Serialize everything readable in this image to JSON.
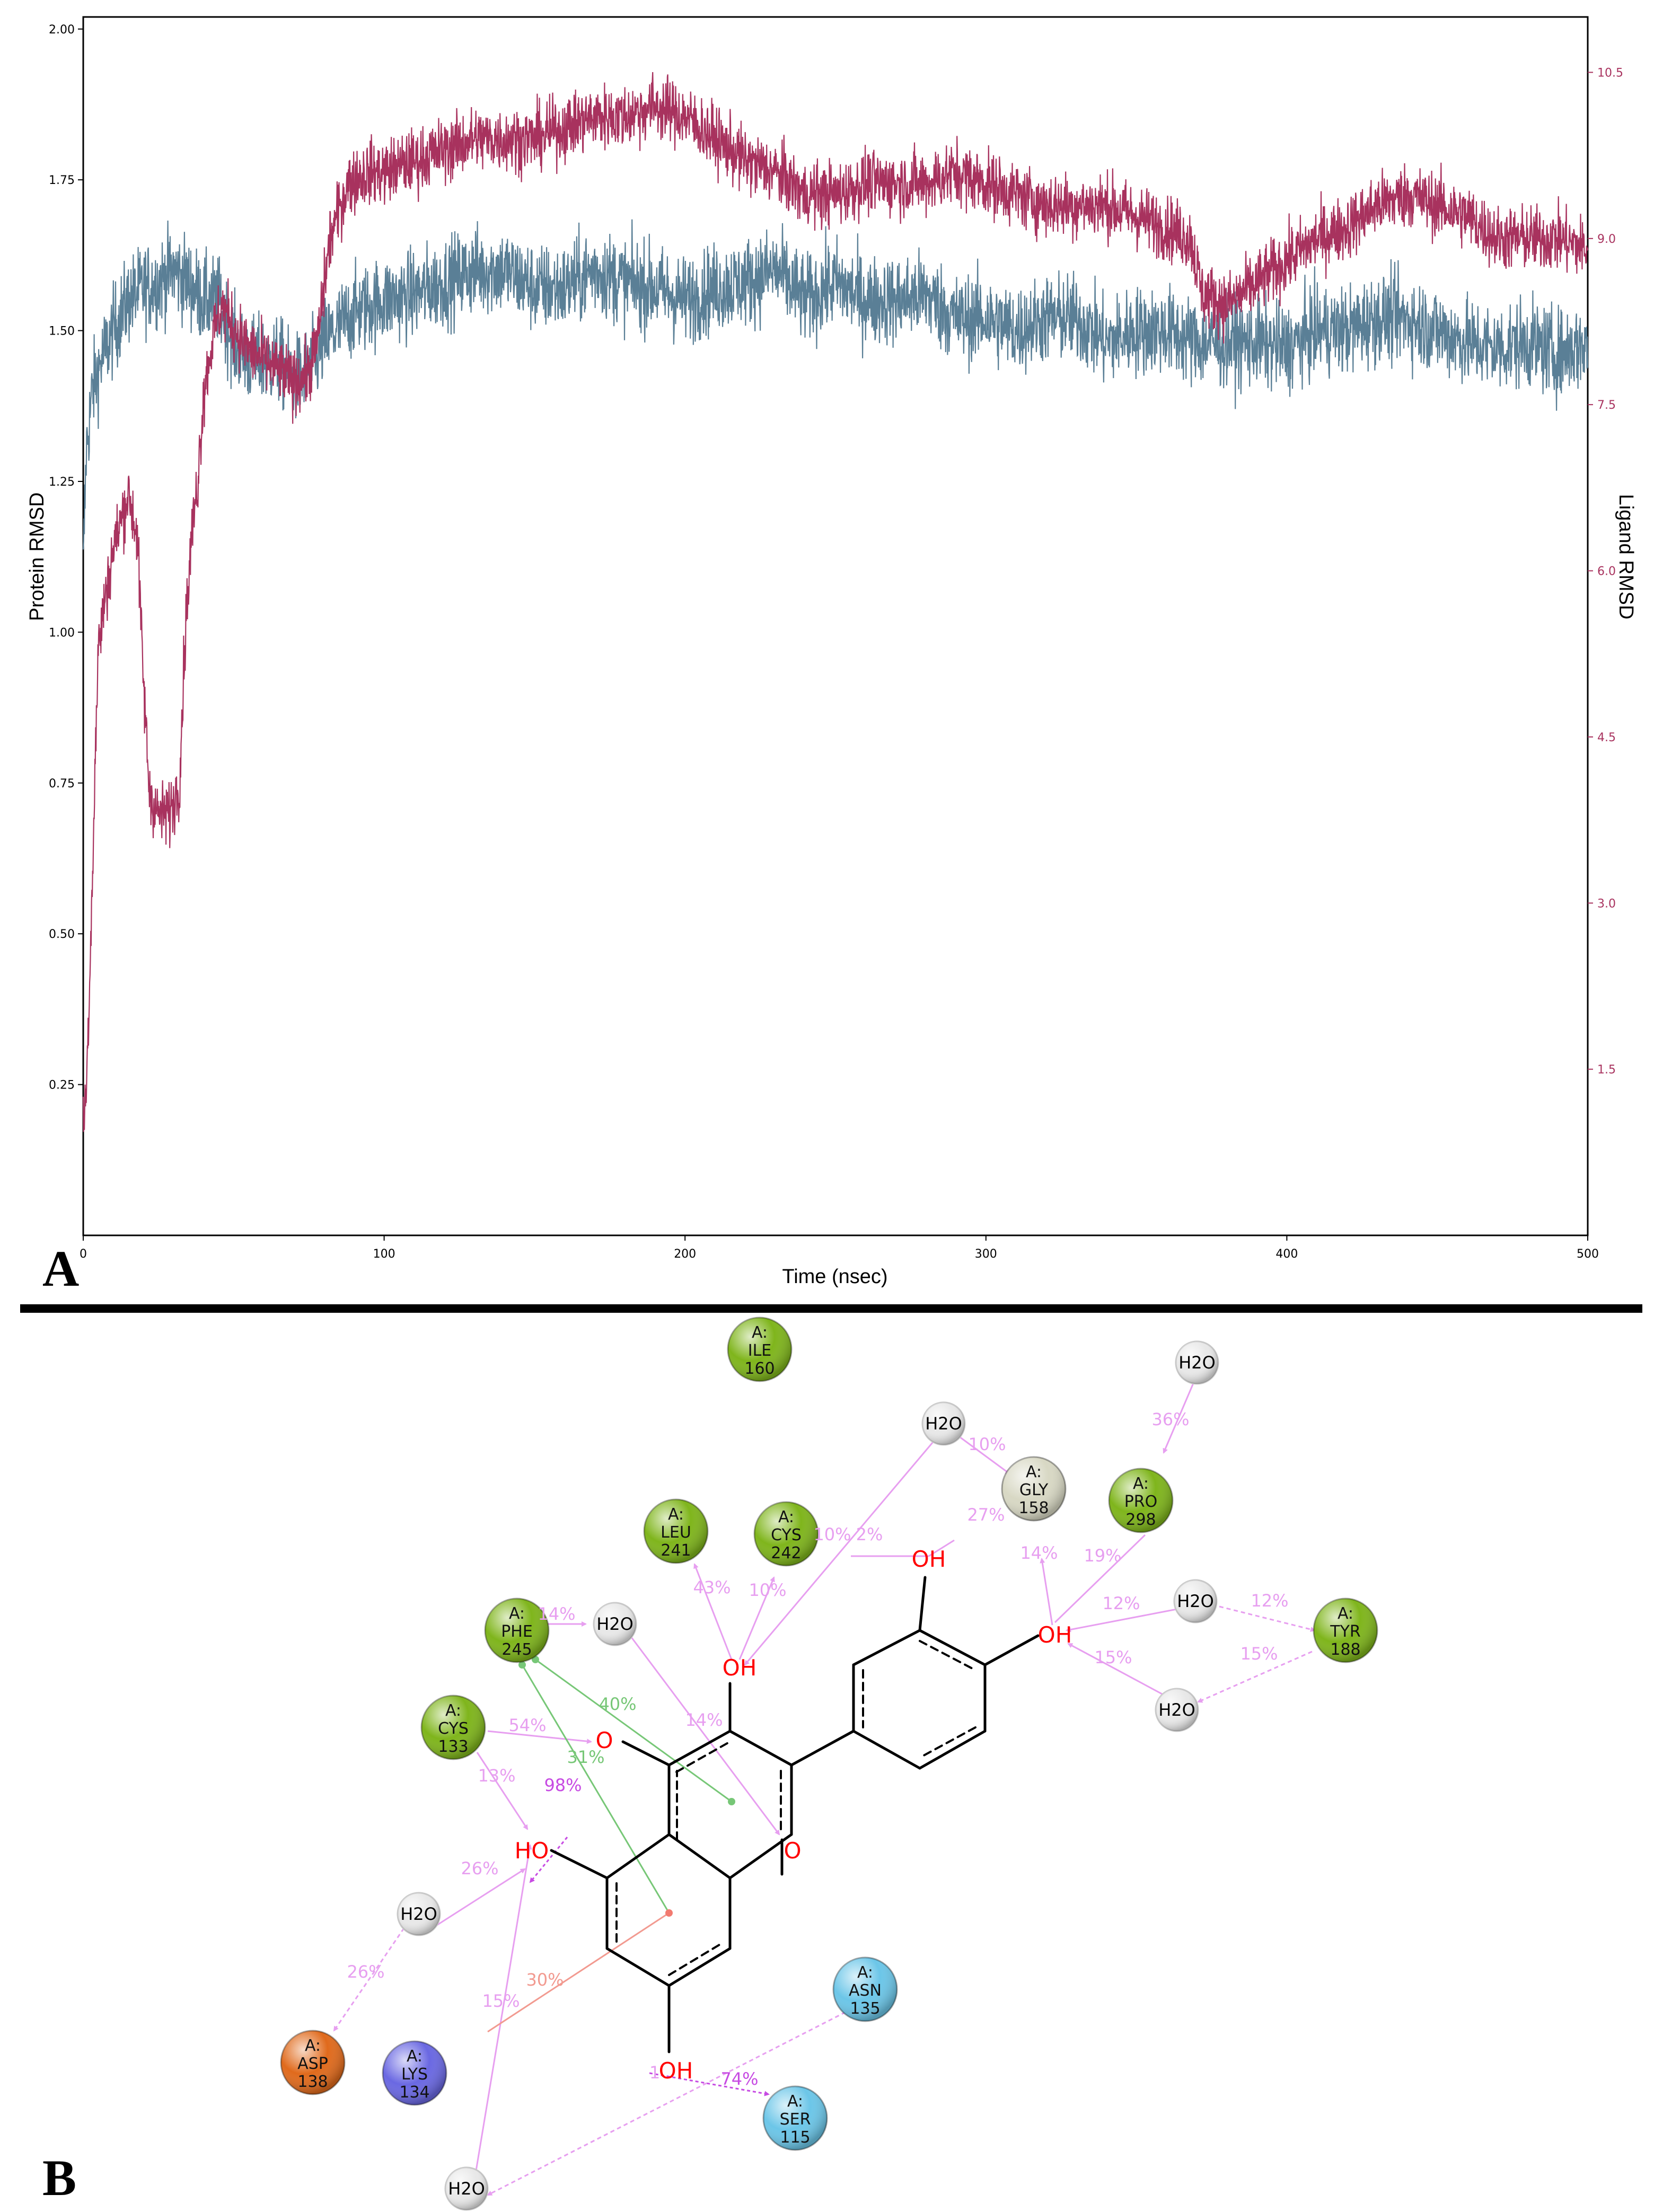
{
  "panels": {
    "a_label": "A",
    "b_label": "B"
  },
  "chart_data": {
    "type": "line",
    "xlabel": "Time (nsec)",
    "ylabel_left": "Protein RMSD",
    "ylabel_right": "Ligand RMSD",
    "xlim": [
      0,
      500
    ],
    "ylim_left": [
      0,
      2.02
    ],
    "ylim_right": [
      0,
      11.0
    ],
    "x_ticks": [
      0,
      100,
      200,
      300,
      400,
      500
    ],
    "y_ticks_left": [
      "0.25",
      "0.50",
      "0.75",
      "1.00",
      "1.25",
      "1.50",
      "1.75",
      "2.00"
    ],
    "y_ticks_right": [
      "1.5",
      "3.0",
      "4.5",
      "6.0",
      "7.5",
      "9.0",
      "10.5"
    ],
    "grid": false,
    "series": [
      {
        "axis": "left",
        "color": "#5a7f96",
        "noise": 0.07,
        "points": [
          [
            0,
            1.1
          ],
          [
            1,
            1.3
          ],
          [
            3,
            1.4
          ],
          [
            6,
            1.45
          ],
          [
            10,
            1.5
          ],
          [
            15,
            1.55
          ],
          [
            20,
            1.57
          ],
          [
            25,
            1.58
          ],
          [
            30,
            1.6
          ],
          [
            35,
            1.58
          ],
          [
            40,
            1.55
          ],
          [
            45,
            1.55
          ],
          [
            50,
            1.48
          ],
          [
            55,
            1.45
          ],
          [
            60,
            1.45
          ],
          [
            65,
            1.45
          ],
          [
            70,
            1.42
          ],
          [
            75,
            1.43
          ],
          [
            80,
            1.48
          ],
          [
            90,
            1.53
          ],
          [
            100,
            1.55
          ],
          [
            110,
            1.56
          ],
          [
            120,
            1.58
          ],
          [
            130,
            1.6
          ],
          [
            140,
            1.6
          ],
          [
            150,
            1.57
          ],
          [
            160,
            1.57
          ],
          [
            170,
            1.6
          ],
          [
            180,
            1.58
          ],
          [
            190,
            1.57
          ],
          [
            200,
            1.55
          ],
          [
            210,
            1.57
          ],
          [
            220,
            1.58
          ],
          [
            230,
            1.6
          ],
          [
            240,
            1.55
          ],
          [
            250,
            1.58
          ],
          [
            260,
            1.55
          ],
          [
            270,
            1.55
          ],
          [
            280,
            1.56
          ],
          [
            290,
            1.52
          ],
          [
            300,
            1.52
          ],
          [
            310,
            1.5
          ],
          [
            320,
            1.52
          ],
          [
            330,
            1.52
          ],
          [
            340,
            1.48
          ],
          [
            350,
            1.5
          ],
          [
            360,
            1.5
          ],
          [
            370,
            1.48
          ],
          [
            380,
            1.48
          ],
          [
            390,
            1.48
          ],
          [
            400,
            1.47
          ],
          [
            410,
            1.5
          ],
          [
            420,
            1.5
          ],
          [
            430,
            1.52
          ],
          [
            440,
            1.52
          ],
          [
            450,
            1.5
          ],
          [
            460,
            1.48
          ],
          [
            470,
            1.47
          ],
          [
            480,
            1.48
          ],
          [
            490,
            1.46
          ],
          [
            500,
            1.48
          ]
        ]
      },
      {
        "axis": "right",
        "color": "#a8325e",
        "noise": 0.28,
        "points": [
          [
            0,
            1.0
          ],
          [
            1,
            1.3
          ],
          [
            2,
            2.2
          ],
          [
            3,
            3.2
          ],
          [
            4,
            4.3
          ],
          [
            5,
            5.3
          ],
          [
            7,
            5.7
          ],
          [
            10,
            6.2
          ],
          [
            15,
            6.7
          ],
          [
            18,
            6.3
          ],
          [
            20,
            5.0
          ],
          [
            22,
            4.0
          ],
          [
            25,
            3.8
          ],
          [
            28,
            3.8
          ],
          [
            30,
            3.9
          ],
          [
            32,
            4.1
          ],
          [
            34,
            5.5
          ],
          [
            36,
            6.3
          ],
          [
            38,
            6.8
          ],
          [
            40,
            7.6
          ],
          [
            43,
            8.1
          ],
          [
            46,
            8.4
          ],
          [
            50,
            8.2
          ],
          [
            55,
            8.0
          ],
          [
            60,
            7.9
          ],
          [
            65,
            7.8
          ],
          [
            70,
            7.7
          ],
          [
            75,
            7.8
          ],
          [
            78,
            8.1
          ],
          [
            82,
            9.0
          ],
          [
            88,
            9.5
          ],
          [
            95,
            9.6
          ],
          [
            100,
            9.6
          ],
          [
            110,
            9.7
          ],
          [
            120,
            9.8
          ],
          [
            130,
            9.9
          ],
          [
            140,
            9.9
          ],
          [
            150,
            9.9
          ],
          [
            160,
            10.0
          ],
          [
            170,
            10.1
          ],
          [
            180,
            10.1
          ],
          [
            190,
            10.2
          ],
          [
            200,
            10.1
          ],
          [
            210,
            9.9
          ],
          [
            220,
            9.7
          ],
          [
            230,
            9.6
          ],
          [
            240,
            9.4
          ],
          [
            250,
            9.4
          ],
          [
            260,
            9.5
          ],
          [
            270,
            9.5
          ],
          [
            280,
            9.5
          ],
          [
            290,
            9.6
          ],
          [
            300,
            9.5
          ],
          [
            310,
            9.4
          ],
          [
            320,
            9.3
          ],
          [
            330,
            9.3
          ],
          [
            340,
            9.3
          ],
          [
            350,
            9.2
          ],
          [
            360,
            9.1
          ],
          [
            368,
            9.0
          ],
          [
            372,
            8.5
          ],
          [
            380,
            8.4
          ],
          [
            390,
            8.6
          ],
          [
            400,
            8.8
          ],
          [
            410,
            9.0
          ],
          [
            420,
            9.1
          ],
          [
            430,
            9.3
          ],
          [
            440,
            9.4
          ],
          [
            450,
            9.3
          ],
          [
            460,
            9.2
          ],
          [
            470,
            9.0
          ],
          [
            480,
            9.0
          ],
          [
            490,
            9.0
          ],
          [
            500,
            8.9
          ]
        ]
      }
    ]
  },
  "diagram": {
    "water_label": "H2O",
    "residues": [
      {
        "id": "ile160",
        "chain": "A:",
        "name": "ILE",
        "num": "160",
        "color": "#7fb51c"
      },
      {
        "id": "gly158",
        "chain": "A:",
        "name": "GLY",
        "num": "158",
        "color": "#d8d8c4"
      },
      {
        "id": "pro298",
        "chain": "A:",
        "name": "PRO",
        "num": "298",
        "color": "#7fb51c"
      },
      {
        "id": "leu241",
        "chain": "A:",
        "name": "LEU",
        "num": "241",
        "color": "#7fb51c"
      },
      {
        "id": "cys242",
        "chain": "A:",
        "name": "CYS",
        "num": "242",
        "color": "#7fb51c"
      },
      {
        "id": "phe245",
        "chain": "A:",
        "name": "PHE",
        "num": "245",
        "color": "#7fb51c"
      },
      {
        "id": "tyr188",
        "chain": "A:",
        "name": "TYR",
        "num": "188",
        "color": "#7fb51c"
      },
      {
        "id": "cys133",
        "chain": "A:",
        "name": "CYS",
        "num": "133",
        "color": "#7fb51c"
      },
      {
        "id": "asn135",
        "chain": "A:",
        "name": "ASN",
        "num": "135",
        "color": "#6cc6e8"
      },
      {
        "id": "asp138",
        "chain": "A:",
        "name": "ASP",
        "num": "138",
        "color": "#e06a1c"
      },
      {
        "id": "lys134",
        "chain": "A:",
        "name": "LYS",
        "num": "134",
        "color": "#6a68e2"
      },
      {
        "id": "ser115",
        "chain": "A:",
        "name": "SER",
        "num": "115",
        "color": "#6cc6e8"
      }
    ],
    "atom_labels": {
      "oh": "OH",
      "ho": "HO",
      "o": "O"
    },
    "percentages": [
      "10%",
      "36%",
      "27%",
      "10%",
      "2%",
      "43%",
      "10%",
      "14%",
      "19%",
      "12%",
      "12%",
      "15%",
      "15%",
      "14%",
      "40%",
      "14%",
      "54%",
      "31%",
      "98%",
      "13%",
      "26%",
      "26%",
      "30%",
      "15%",
      "74%",
      "1"
    ]
  }
}
